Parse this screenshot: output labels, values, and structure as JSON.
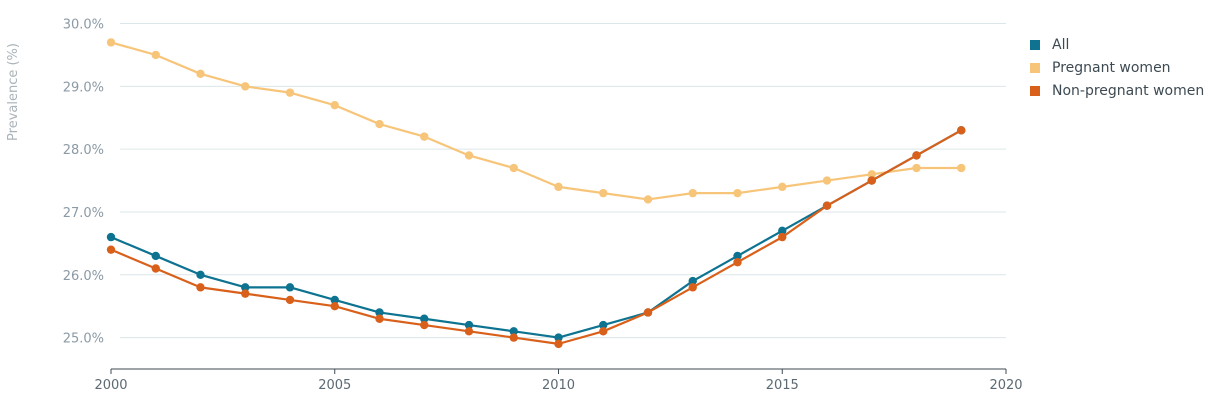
{
  "chart_data": {
    "type": "line",
    "ylabel": "Prevalence (%)",
    "xlabel": "",
    "xlim": [
      2000,
      2020
    ],
    "ylim": [
      24.5,
      30.2
    ],
    "x_ticks": [
      "2000",
      "2005",
      "2010",
      "2015",
      "2020"
    ],
    "y_ticks": [
      "25.0%",
      "26.0%",
      "27.0%",
      "28.0%",
      "29.0%",
      "30.0%"
    ],
    "grid": true,
    "legend_position": "top-right",
    "x": [
      2000,
      2001,
      2002,
      2003,
      2004,
      2005,
      2006,
      2007,
      2008,
      2009,
      2010,
      2011,
      2012,
      2013,
      2014,
      2015,
      2016,
      2017,
      2018,
      2019
    ],
    "series": [
      {
        "name": "All",
        "color": "#0d7391",
        "values": [
          26.6,
          26.3,
          26.0,
          25.8,
          25.8,
          25.6,
          25.4,
          25.3,
          25.2,
          25.1,
          25.0,
          25.2,
          25.4,
          25.9,
          26.3,
          26.7,
          27.1,
          27.5,
          27.9,
          28.3
        ]
      },
      {
        "name": "Pregnant women",
        "color": "#f7c57a",
        "values": [
          29.7,
          29.5,
          29.2,
          29.0,
          28.9,
          28.7,
          28.4,
          28.2,
          27.9,
          27.7,
          27.4,
          27.3,
          27.2,
          27.3,
          27.3,
          27.4,
          27.5,
          27.6,
          27.7,
          27.7
        ]
      },
      {
        "name": "Non-pregnant women",
        "color": "#d9601a",
        "values": [
          26.4,
          26.1,
          25.8,
          25.7,
          25.6,
          25.5,
          25.3,
          25.2,
          25.1,
          25.0,
          24.9,
          25.1,
          25.4,
          25.8,
          26.2,
          26.6,
          27.1,
          27.5,
          27.9,
          28.3
        ]
      }
    ]
  }
}
